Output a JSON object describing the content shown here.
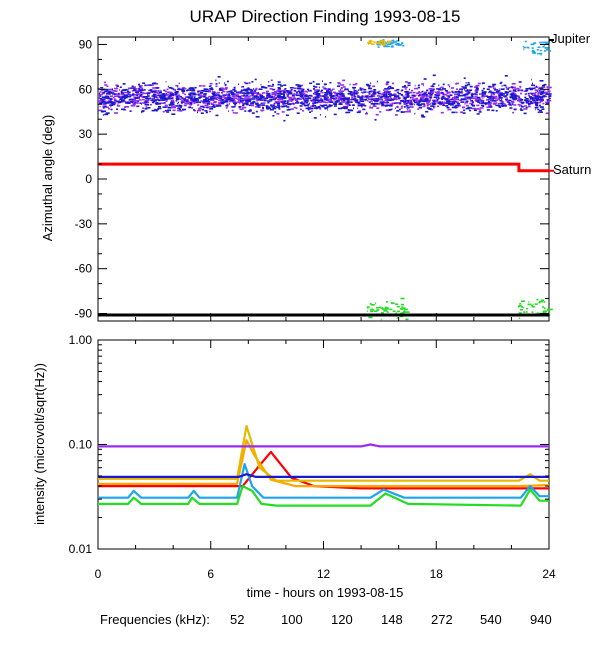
{
  "chart_data": [
    {
      "type": "scatter",
      "title": "URAP Direction Finding  1993-08-15",
      "ylabel": "Azimuthal angle (deg)",
      "xlim": [
        0,
        24
      ],
      "ylim": [
        -95,
        95
      ],
      "x_ticks": [
        "0",
        "6",
        "12",
        "18",
        "24"
      ],
      "y_ticks": [
        "90",
        "60",
        "30",
        "0",
        "-30",
        "-60",
        "-90"
      ],
      "y_tick_values": [
        90,
        60,
        30,
        0,
        -30,
        -60,
        -90
      ],
      "reference_lines": [
        {
          "label": "Jupiter",
          "color": "#000000",
          "points": [
            [
              0,
              -91
            ],
            [
              24,
              -91
            ]
          ],
          "marker_y": 93
        },
        {
          "label": "Saturn",
          "color": "#ff0000",
          "points": [
            [
              0,
              10
            ],
            [
              22.4,
              10
            ],
            [
              22.4,
              5.5
            ],
            [
              24,
              5.5
            ]
          ],
          "marker_y": 5.5
        }
      ],
      "scatter_groups": [
        {
          "frequency": "940",
          "color": "#9a2cf0",
          "x_range": [
            0,
            24
          ],
          "y_center": 55,
          "y_spread": 6
        },
        {
          "frequency": "540",
          "color": "#1a1acc",
          "x_range": [
            0,
            24
          ],
          "y_center": 55,
          "y_spread": 7
        },
        {
          "frequency": "148",
          "color": "#22dd22",
          "x_range": [
            14.3,
            16.5
          ],
          "y_center": -87,
          "y_spread": 4
        },
        {
          "frequency": "148",
          "color": "#22dd22",
          "x_range": [
            22.3,
            24
          ],
          "y_center": -86,
          "y_spread": 5
        },
        {
          "frequency": "272",
          "color": "#1ca4ee",
          "x_range": [
            14.8,
            16.2
          ],
          "y_center": 91,
          "y_spread": 2
        },
        {
          "frequency": "120",
          "color": "#e6b800",
          "x_range": [
            14.3,
            15.4
          ],
          "y_center": 92,
          "y_spread": 1.5
        },
        {
          "frequency": "272",
          "color": "#1ca4ee",
          "x_range": [
            22.6,
            24
          ],
          "y_center": 88,
          "y_spread": 3
        }
      ]
    },
    {
      "type": "line",
      "ylabel": "intensity (microvolt/sqrt(Hz))",
      "xlabel": "time - hours on 1993-08-15",
      "xlim": [
        0,
        24
      ],
      "ylim": [
        0.01,
        1.0
      ],
      "yscale": "log",
      "x_ticks": [
        "0",
        "6",
        "12",
        "18",
        "24"
      ],
      "y_ticks": [
        "1.00",
        "0.10",
        "0.01"
      ],
      "y_tick_values": [
        1.0,
        0.1,
        0.01
      ],
      "series": [
        {
          "name": "52",
          "color": "#ff0000",
          "x": [
            0,
            7.7,
            8.5,
            9.2,
            10.3,
            11.5,
            14,
            22.4,
            24
          ],
          "y": [
            0.04,
            0.04,
            0.06,
            0.085,
            0.048,
            0.04,
            0.038,
            0.038,
            0.038
          ]
        },
        {
          "name": "100",
          "color": "#ffa500",
          "x": [
            0,
            7.4,
            7.9,
            8.3,
            9.2,
            10.5,
            22.4,
            24
          ],
          "y": [
            0.042,
            0.042,
            0.11,
            0.08,
            0.046,
            0.04,
            0.04,
            0.041
          ]
        },
        {
          "name": "120",
          "color": "#e6b800",
          "x": [
            0,
            7.4,
            7.9,
            8.6,
            9.5,
            22.4,
            23.0,
            23.5,
            24
          ],
          "y": [
            0.047,
            0.047,
            0.15,
            0.06,
            0.045,
            0.045,
            0.052,
            0.045,
            0.045
          ]
        },
        {
          "name": "148",
          "color": "#22dd22",
          "x": [
            0,
            1.6,
            1.9,
            2.3,
            4.8,
            5.0,
            5.4,
            7.4,
            7.7,
            8.2,
            8.7,
            9.5,
            14.5,
            15.3,
            16.5,
            22.5,
            23.0,
            23.5,
            24
          ],
          "y": [
            0.027,
            0.027,
            0.031,
            0.027,
            0.027,
            0.031,
            0.027,
            0.027,
            0.04,
            0.036,
            0.027,
            0.026,
            0.026,
            0.034,
            0.027,
            0.026,
            0.037,
            0.029,
            0.029
          ]
        },
        {
          "name": "272",
          "color": "#1ca4ee",
          "x": [
            0,
            1.6,
            1.9,
            2.3,
            4.8,
            5.1,
            5.4,
            7.4,
            7.8,
            8.2,
            8.8,
            14.5,
            15.2,
            16.3,
            22.5,
            23.0,
            23.5,
            24
          ],
          "y": [
            0.031,
            0.031,
            0.036,
            0.031,
            0.031,
            0.036,
            0.031,
            0.031,
            0.065,
            0.04,
            0.031,
            0.031,
            0.037,
            0.031,
            0.031,
            0.04,
            0.032,
            0.032
          ]
        },
        {
          "name": "540",
          "color": "#1a1acc",
          "x": [
            0,
            7.5,
            7.9,
            8.4,
            24
          ],
          "y": [
            0.049,
            0.049,
            0.052,
            0.049,
            0.049
          ]
        },
        {
          "name": "940",
          "color": "#9a2cf0",
          "x": [
            0,
            14,
            14.5,
            15.0,
            24
          ],
          "y": [
            0.096,
            0.096,
            0.1,
            0.096,
            0.096
          ]
        }
      ]
    }
  ],
  "legend": {
    "label": "Frequencies (kHz):",
    "items": [
      {
        "text": "52",
        "color": "#ff0000"
      },
      {
        "text": "100",
        "color": "#ffa500"
      },
      {
        "text": "120",
        "color": "#e6b800"
      },
      {
        "text": "148",
        "color": "#22dd22"
      },
      {
        "text": "272",
        "color": "#1ca4ee"
      },
      {
        "text": "540",
        "color": "#1a1acc"
      },
      {
        "text": "940",
        "color": "#9a2cf0"
      }
    ]
  }
}
